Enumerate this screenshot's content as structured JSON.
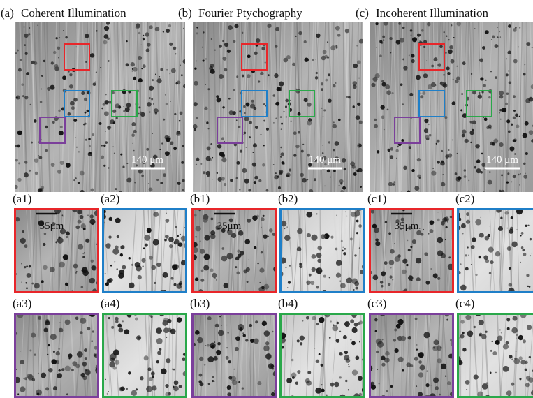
{
  "panels": [
    {
      "label": "(a)",
      "title": "Coherent Illumination",
      "scale_bar": "140 μm",
      "insets": [
        {
          "label": "(a1)",
          "scale_bar": "35μm"
        },
        {
          "label": "(a2)"
        },
        {
          "label": "(a3)"
        },
        {
          "label": "(a4)"
        }
      ]
    },
    {
      "label": "(b)",
      "title": "Fourier Ptychography",
      "scale_bar": "140 μm",
      "insets": [
        {
          "label": "(b1)",
          "scale_bar": "35μm"
        },
        {
          "label": "(b2)"
        },
        {
          "label": "(b3)"
        },
        {
          "label": "(b4)"
        }
      ]
    },
    {
      "label": "(c)",
      "title": "Incoherent Illumination",
      "scale_bar": "140 μm",
      "insets": [
        {
          "label": "(c1)",
          "scale_bar": "35μm"
        },
        {
          "label": "(c2)"
        },
        {
          "label": "(c3)"
        },
        {
          "label": "(c4)"
        }
      ]
    }
  ]
}
